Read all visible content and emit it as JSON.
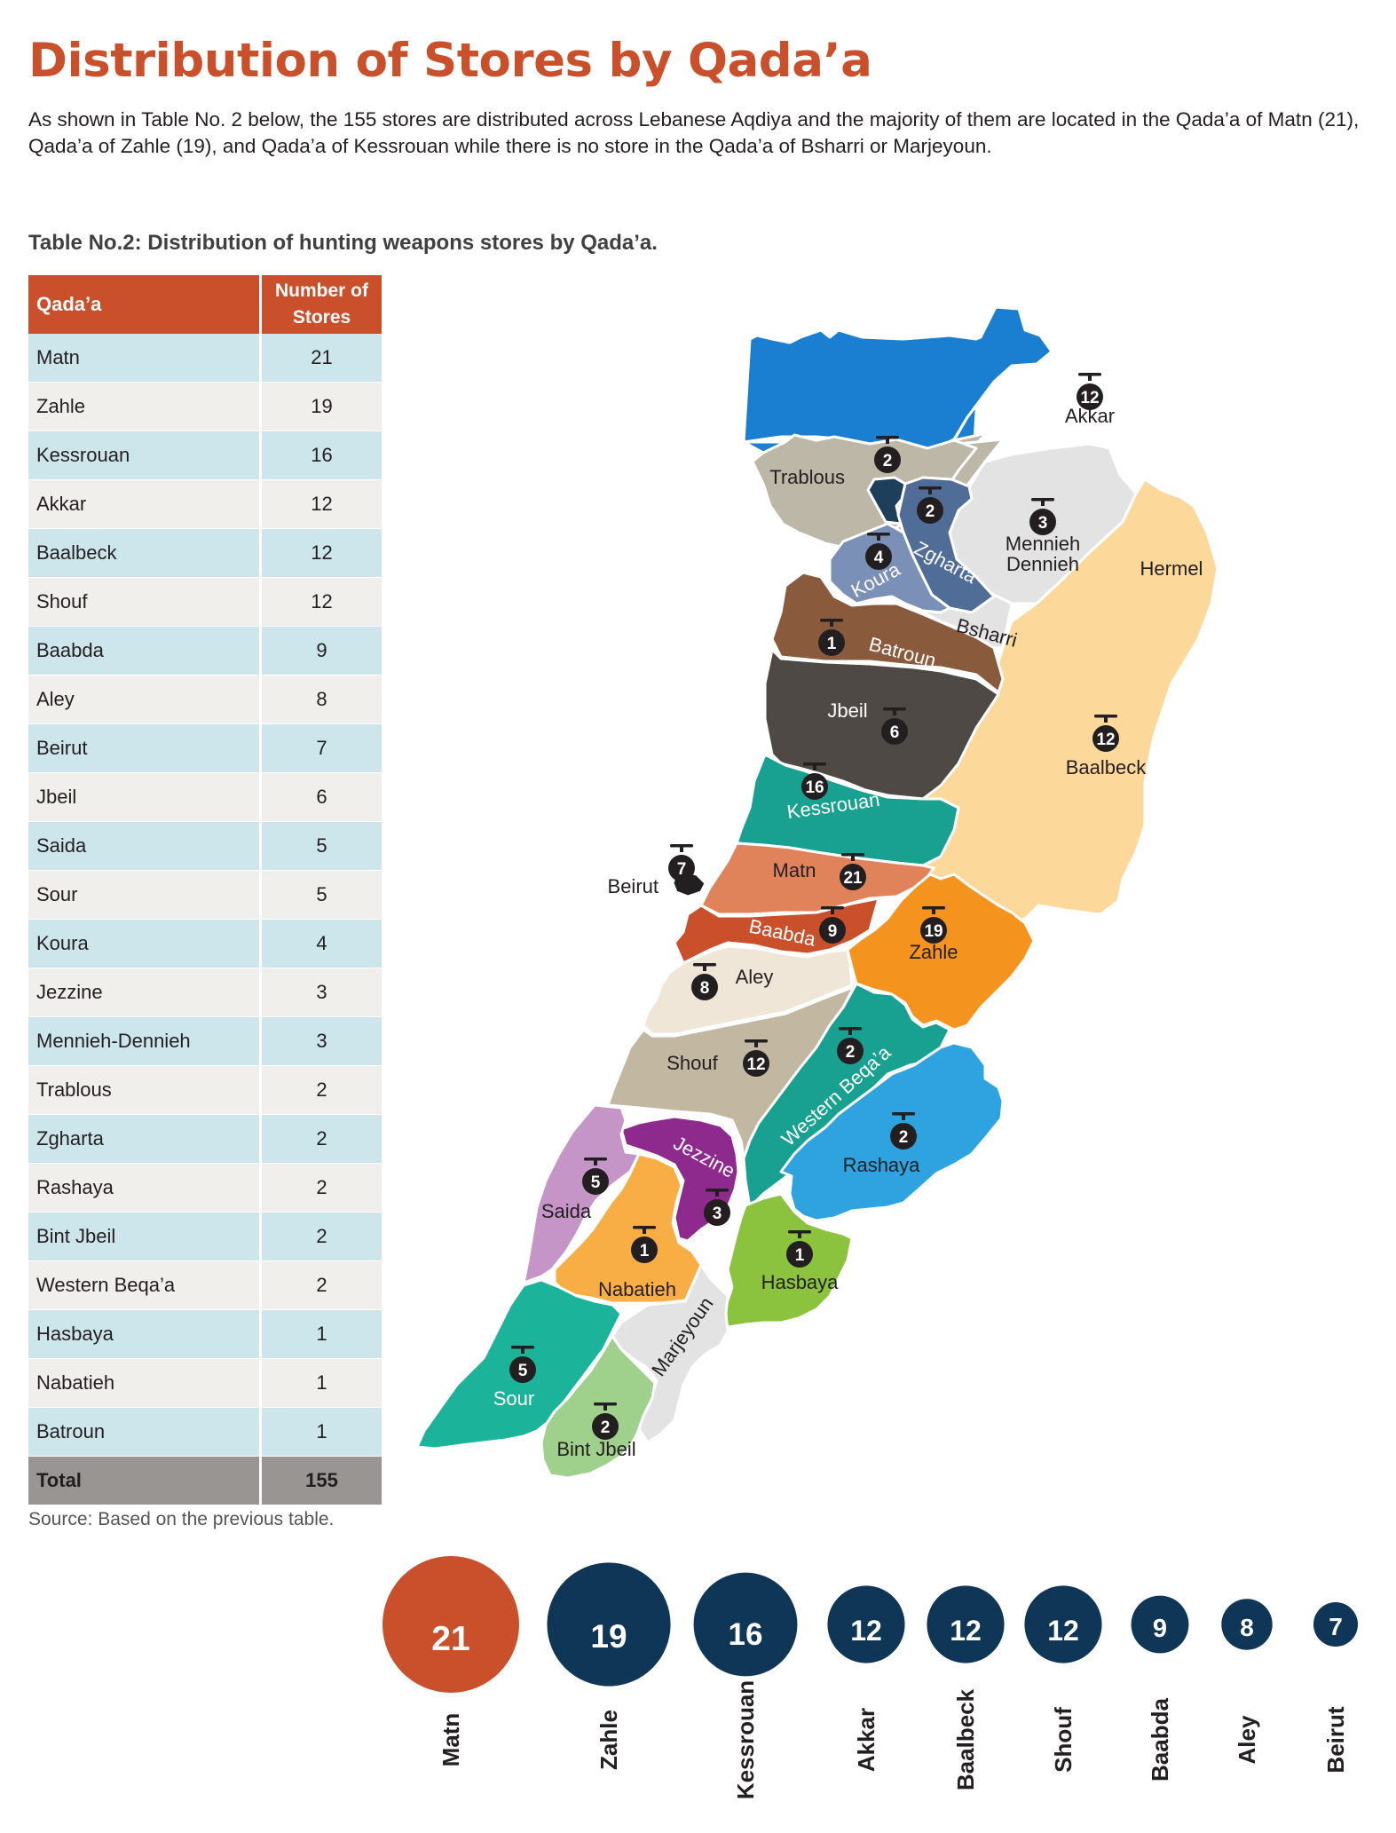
{
  "title": "Distribution of Stores by Qada’a",
  "intro": "As shown in Table No. 2 below, the 155 stores are distributed across Lebanese Aqdiya and the majority of them are located in the Qada’a of Matn (21), Qada’a of Zahle (19), and Qada’a of Kessrouan while there is no store in the Qada’a of Bsharri or Marjeyoun.",
  "table_caption": "Table No.2: Distribution of hunting weapons stores by Qada’a.",
  "table": {
    "header_qadaa": "Qada’a",
    "header_count": "Number of Stores",
    "rows": [
      {
        "qadaa": "Matn",
        "count": "21"
      },
      {
        "qadaa": "Zahle",
        "count": "19"
      },
      {
        "qadaa": "Kessrouan",
        "count": "16"
      },
      {
        "qadaa": "Akkar",
        "count": "12"
      },
      {
        "qadaa": "Baalbeck",
        "count": "12"
      },
      {
        "qadaa": "Shouf",
        "count": "12"
      },
      {
        "qadaa": "Baabda",
        "count": "9"
      },
      {
        "qadaa": "Aley",
        "count": "8"
      },
      {
        "qadaa": "Beirut",
        "count": "7"
      },
      {
        "qadaa": "Jbeil",
        "count": "6"
      },
      {
        "qadaa": "Saida",
        "count": "5"
      },
      {
        "qadaa": "Sour",
        "count": "5"
      },
      {
        "qadaa": "Koura",
        "count": "4"
      },
      {
        "qadaa": "Jezzine",
        "count": "3"
      },
      {
        "qadaa": "Mennieh-Dennieh",
        "count": "3"
      },
      {
        "qadaa": "Trablous",
        "count": "2"
      },
      {
        "qadaa": "Zgharta",
        "count": "2"
      },
      {
        "qadaa": "Rashaya",
        "count": "2"
      },
      {
        "qadaa": "Bint Jbeil",
        "count": "2"
      },
      {
        "qadaa": "Western Beqa’a",
        "count": "2"
      },
      {
        "qadaa": "Hasbaya",
        "count": "1"
      },
      {
        "qadaa": "Nabatieh",
        "count": "1"
      },
      {
        "qadaa": "Batroun",
        "count": "1"
      }
    ],
    "total_label": "Total",
    "total_value": "155"
  },
  "source_note": "Source: Based on the previous table.",
  "map": {
    "regions": [
      {
        "name": "Akkar",
        "label": "Akkar",
        "count": "12",
        "color": "#1b7fd1"
      },
      {
        "name": "Trablous",
        "label": "Trablous",
        "count": "2",
        "color": "#1d3f5c"
      },
      {
        "name": "Zgharta",
        "label": "Zgharta",
        "count": "2",
        "color": "#4f6d97"
      },
      {
        "name": "Koura",
        "label": "Koura",
        "count": "4",
        "color": "#7b90b6"
      },
      {
        "name": "Mennieh-Dennieh",
        "label": "Mennieh Dennieh",
        "count": "3",
        "color": "#bdb7a8"
      },
      {
        "name": "Hermel",
        "label": "Hermel",
        "count": "",
        "color": "#e3e3e3"
      },
      {
        "name": "Bsharri",
        "label": "Bsharri",
        "count": "",
        "color": "#e3e3e3"
      },
      {
        "name": "Batroun",
        "label": "Batroun",
        "count": "1",
        "color": "#8a5a3c"
      },
      {
        "name": "Jbeil",
        "label": "Jbeil",
        "count": "6",
        "color": "#4e4944"
      },
      {
        "name": "Baalbeck",
        "label": "Baalbeck",
        "count": "12",
        "color": "#fdd89b"
      },
      {
        "name": "Kessrouan",
        "label": "Kessrouan",
        "count": "16",
        "color": "#18a190"
      },
      {
        "name": "Beirut",
        "label": "Beirut",
        "count": "7",
        "color": "#231f20"
      },
      {
        "name": "Matn",
        "label": "Matn",
        "count": "21",
        "color": "#e0825a"
      },
      {
        "name": "Baabda",
        "label": "Baabda",
        "count": "9",
        "color": "#c9502a"
      },
      {
        "name": "Zahle",
        "label": "Zahle",
        "count": "19",
        "color": "#f4931e"
      },
      {
        "name": "Aley",
        "label": "Aley",
        "count": "8",
        "color": "#efe6d8"
      },
      {
        "name": "Shouf",
        "label": "Shouf",
        "count": "12",
        "color": "#c2b7a0"
      },
      {
        "name": "Western Beqa’a",
        "label": "Western Beqa’a",
        "count": "2",
        "color": "#18a190"
      },
      {
        "name": "Rashaya",
        "label": "Rashaya",
        "count": "2",
        "color": "#2ea3e0"
      },
      {
        "name": "Jezzine",
        "label": "Jezzine",
        "count": "3",
        "color": "#8e2a8e"
      },
      {
        "name": "Saida",
        "label": "Saida",
        "count": "5",
        "color": "#c595c8"
      },
      {
        "name": "Nabatieh",
        "label": "Nabatieh",
        "count": "1",
        "color": "#f9ad45"
      },
      {
        "name": "Hasbaya",
        "label": "Hasbaya",
        "count": "1",
        "color": "#8bc33f"
      },
      {
        "name": "Marjeyoun",
        "label": "Marjeyoun",
        "count": "",
        "color": "#e3e3e3"
      },
      {
        "name": "Sour",
        "label": "Sour",
        "count": "5",
        "color": "#1bb399"
      },
      {
        "name": "Bint Jbeil",
        "label": "Bint Jbeil",
        "count": "2",
        "color": "#9fd18c"
      }
    ]
  },
  "chart_data": {
    "type": "bubble",
    "categories": [
      "Matn",
      "Zahle",
      "Kessrouan",
      "Akkar",
      "Baalbeck",
      "Shouf",
      "Baabda",
      "Aley",
      "Beirut"
    ],
    "values": [
      21,
      19,
      16,
      12,
      12,
      12,
      9,
      8,
      7
    ],
    "colors": [
      "#c9502a",
      "#0f3557",
      "#0f3557",
      "#0f3557",
      "#0f3557",
      "#0f3557",
      "#0f3557",
      "#0f3557",
      "#0f3557"
    ]
  }
}
